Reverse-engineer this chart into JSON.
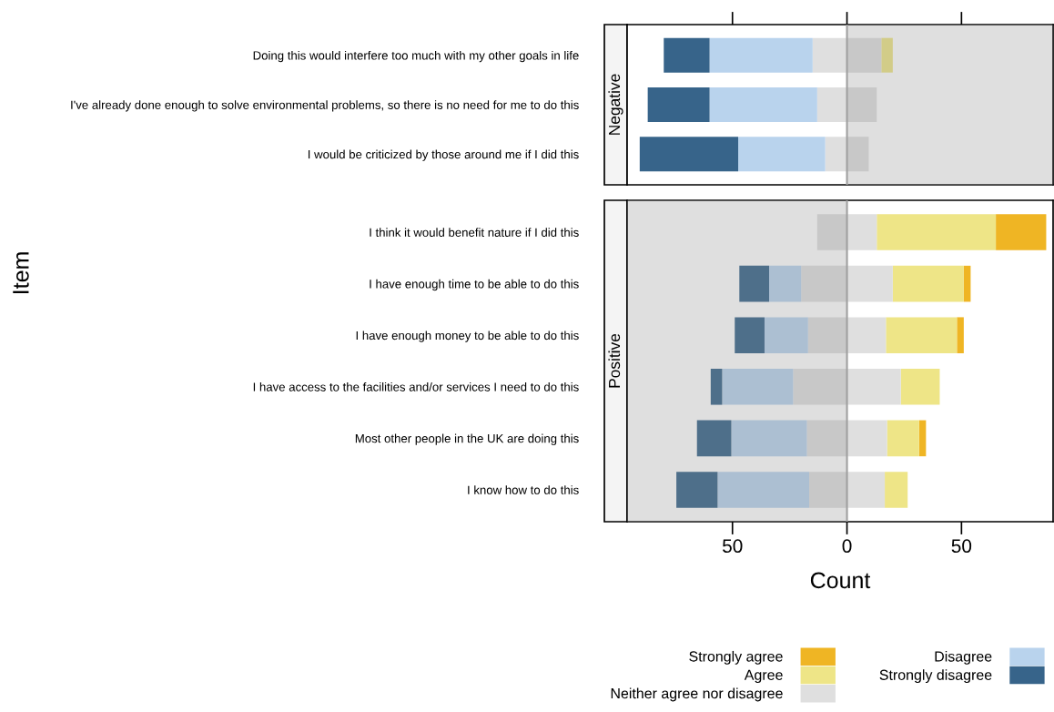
{
  "chart_data": [
    {
      "type": "bar",
      "orientation": "horizontal",
      "title": "Negative",
      "ylabel": "Item",
      "categories": [
        "Doing this would interfere too much with my other goals in life",
        "I've already done enough to solve environmental problems, so there is no need for me to do this",
        "I would be criticized by those around me if I did this"
      ],
      "series": [
        {
          "color": "#eee587",
          "values": [
            5,
            null,
            null
          ],
          "base": [
            15,
            null,
            null
          ]
        },
        {
          "color": "#dfdfdf",
          "values": [
            30,
            26,
            19
          ],
          "base": [
            -15,
            -13,
            -9.5
          ]
        },
        {
          "color": "#b9d3ed",
          "values": [
            45,
            47,
            38
          ],
          "base": [
            -60,
            -60,
            -47.5
          ]
        },
        {
          "color": "#37648a",
          "values": [
            20,
            27,
            43
          ],
          "base": [
            -80,
            -87,
            -90.5
          ]
        }
      ],
      "xlim": [
        -96,
        90
      ],
      "xticks": [
        {
          "value": -50,
          "label": null
        },
        {
          "value": 0,
          "label": null
        },
        {
          "value": 50,
          "label": null
        }
      ],
      "tick_labels": "y",
      "bands": [
        {
          "axis": "x",
          "from": 0,
          "to": 90,
          "color": "#8d8d8d"
        }
      ],
      "ref_lines": [
        {
          "axis": "x",
          "value": 0,
          "color": "#a0a0a0"
        }
      ]
    },
    {
      "type": "bar",
      "orientation": "horizontal",
      "title": "Positive",
      "xlabel": "Count",
      "categories": [
        "I think it would benefit nature if I did this",
        "I have enough time to be able to do this",
        "I have enough money to be able to do this",
        "I have access to the facilities and/or services I need to do this",
        "Most other people in the UK are doing this",
        "I know how to do this"
      ],
      "series": [
        {
          "name": "Strongly agree",
          "color": "#efb524",
          "values": [
            22,
            3,
            3,
            null,
            3,
            null
          ],
          "base": [
            65,
            51,
            48,
            null,
            31.5,
            null
          ]
        },
        {
          "name": "Agree",
          "color": "#eee587",
          "values": [
            52,
            31,
            31,
            17,
            14,
            10
          ],
          "base": [
            13,
            20,
            17,
            23.5,
            17.5,
            16.5
          ]
        },
        {
          "name": "Neither agree nor disagree",
          "color": "#dfdfdf",
          "values": [
            26,
            40,
            34,
            47,
            35,
            33
          ],
          "base": [
            -13,
            -20,
            -17,
            -23.5,
            -17.5,
            -16.5
          ]
        },
        {
          "name": "Disagree",
          "color": "#b9d3ed",
          "values": [
            null,
            14,
            19,
            31,
            33,
            40
          ],
          "base": [
            null,
            -34,
            -36,
            -54.5,
            -50.5,
            -56.5
          ]
        },
        {
          "name": "Strongly disagree",
          "color": "#37648a",
          "values": [
            null,
            13,
            13,
            5,
            15,
            18
          ],
          "base": [
            null,
            -47,
            -49,
            -59.5,
            -65.5,
            -74.5
          ]
        }
      ],
      "xlim": [
        -96,
        90
      ],
      "xticks": [
        {
          "value": -50,
          "label": "50"
        },
        0,
        50
      ],
      "bands": [
        {
          "axis": "x",
          "from": -96,
          "to": 0,
          "color": "#8d8d8d"
        }
      ],
      "ref_lines": [
        {
          "axis": "x",
          "value": 0,
          "color": "#a0a0a0"
        }
      ],
      "legend": "bottom"
    }
  ]
}
